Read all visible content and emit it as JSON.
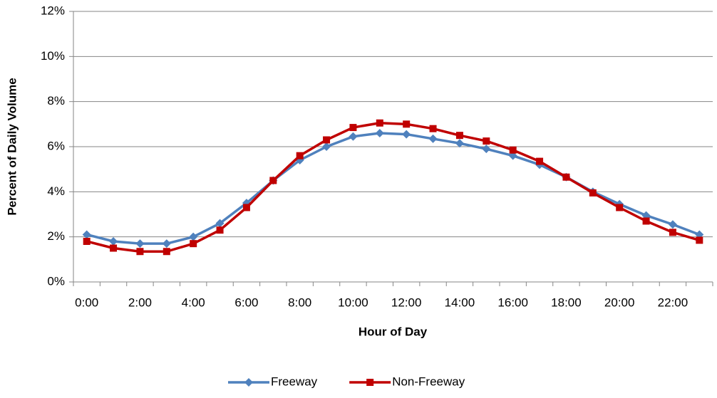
{
  "chart_data": {
    "type": "line",
    "x_label": "Hour of Day",
    "y_label": "Percent of Daily Volume",
    "categories": [
      "0:00",
      null,
      "2:00",
      null,
      "4:00",
      null,
      "6:00",
      null,
      "8:00",
      null,
      "10:00",
      null,
      "12:00",
      null,
      "14:00",
      null,
      "16:00",
      null,
      "18:00",
      null,
      "20:00",
      null,
      "22:00",
      null
    ],
    "series": [
      {
        "name": "Freeway",
        "color": "#4f81bd",
        "marker": "diamond",
        "values": [
          2.1,
          1.8,
          1.7,
          1.7,
          2.0,
          2.6,
          3.5,
          4.5,
          5.4,
          6.0,
          6.45,
          6.6,
          6.55,
          6.35,
          6.15,
          5.9,
          5.6,
          5.2,
          4.65,
          4.0,
          3.45,
          2.95,
          2.55,
          2.1
        ]
      },
      {
        "name": "Non-Freeway",
        "color": "#c00000",
        "marker": "square",
        "values": [
          1.8,
          1.5,
          1.35,
          1.35,
          1.7,
          2.3,
          3.3,
          4.5,
          5.6,
          6.3,
          6.85,
          7.05,
          7.0,
          6.8,
          6.5,
          6.25,
          5.85,
          5.35,
          4.65,
          3.95,
          3.3,
          2.7,
          2.2,
          1.85
        ]
      }
    ],
    "ylim": [
      0,
      12
    ],
    "yticks": [
      {
        "value": 0,
        "label": "0%"
      },
      {
        "value": 2,
        "label": "2%"
      },
      {
        "value": 4,
        "label": "4%"
      },
      {
        "value": 6,
        "label": "6%"
      },
      {
        "value": 8,
        "label": "8%"
      },
      {
        "value": 10,
        "label": "10%"
      },
      {
        "value": 12,
        "label": "12%"
      }
    ],
    "grid": true,
    "legend": "bottom"
  }
}
